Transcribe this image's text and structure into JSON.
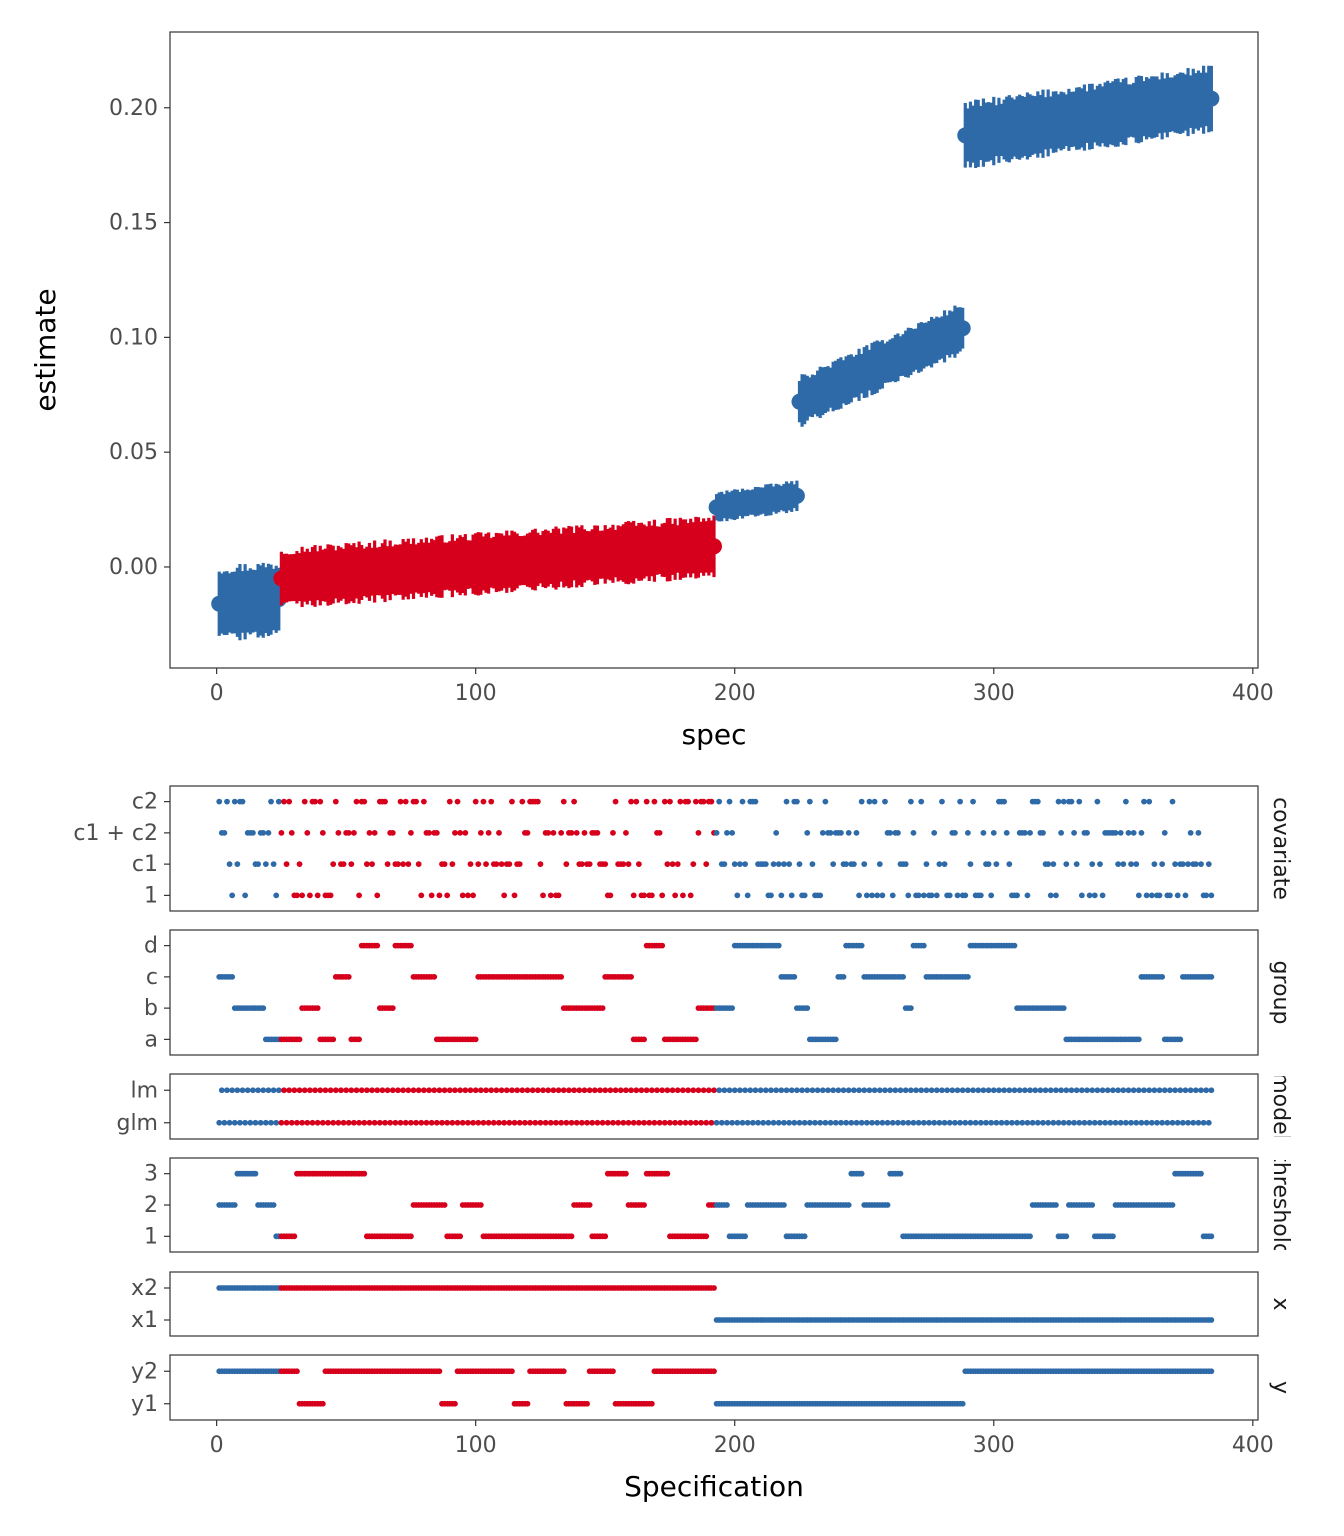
{
  "colors": {
    "blue": "#2f6aa8",
    "red": "#d6001c",
    "panel_border": "#333333",
    "tick": "#333333"
  },
  "chart_data": [
    {
      "type": "scatter",
      "subtype": "specification-curve-with-error-bars",
      "xlabel": "spec",
      "ylabel": "estimate",
      "xlim": [
        -18,
        402
      ],
      "ylim": [
        -0.044,
        0.233
      ],
      "xticks": [
        "0",
        "100",
        "200",
        "300",
        "400"
      ],
      "yticks": [
        "0.00",
        "0.05",
        "0.10",
        "0.15",
        "0.20"
      ],
      "grid": false,
      "series": [
        {
          "color": "blue",
          "x_range": [
            1,
            24
          ],
          "estimate_range": [
            -0.016,
            -0.014
          ],
          "ci_halfwidth": 0.015
        },
        {
          "color": "red",
          "x_range": [
            25,
            192
          ],
          "estimate_range": [
            -0.005,
            0.009
          ],
          "ci_halfwidth": 0.012
        },
        {
          "color": "blue",
          "x_range": [
            193,
            224
          ],
          "estimate_range": [
            0.026,
            0.031
          ],
          "ci_halfwidth": 0.006
        },
        {
          "color": "blue",
          "x_range": [
            225,
            288
          ],
          "estimate_range": [
            0.072,
            0.104
          ],
          "ci_halfwidth": 0.01
        },
        {
          "color": "blue",
          "x_range": [
            289,
            384
          ],
          "estimate_range": [
            0.188,
            0.204
          ],
          "ci_halfwidth": 0.013
        }
      ]
    },
    {
      "type": "scatter",
      "subtype": "specification-choices",
      "xlabel": "Specification",
      "xlim": [
        -18,
        402
      ],
      "xticks": [
        "0",
        "100",
        "200",
        "300",
        "400"
      ],
      "panels": [
        {
          "strip": "covariate",
          "levels": [
            "c2",
            "c1 + c2",
            "c1",
            "1"
          ],
          "pattern": "scattered",
          "seed": 11
        },
        {
          "strip": "group",
          "levels": [
            "d",
            "c",
            "b",
            "a"
          ],
          "pattern": "runs",
          "seed": 23
        },
        {
          "strip": "model",
          "levels": [
            "lm",
            "glm"
          ],
          "pattern": "alternating"
        },
        {
          "strip": "threshold",
          "levels": [
            "3",
            "2",
            "1"
          ],
          "pattern": "runs",
          "seed": 37
        },
        {
          "strip": "x",
          "levels": [
            "x2",
            "x1"
          ],
          "segments": [
            {
              "level": "x2",
              "from": 1,
              "to": 192
            },
            {
              "level": "x1",
              "from": 193,
              "to": 384
            }
          ]
        },
        {
          "strip": "y",
          "levels": [
            "y2",
            "y1"
          ],
          "pattern": "runs",
          "seed": 53,
          "segments": [
            {
              "level": "y2",
              "from": 1,
              "to": 24
            },
            {
              "level": "y1",
              "from": 193,
              "to": 288
            },
            {
              "level": "y2",
              "from": 289,
              "to": 384
            }
          ]
        }
      ]
    }
  ]
}
